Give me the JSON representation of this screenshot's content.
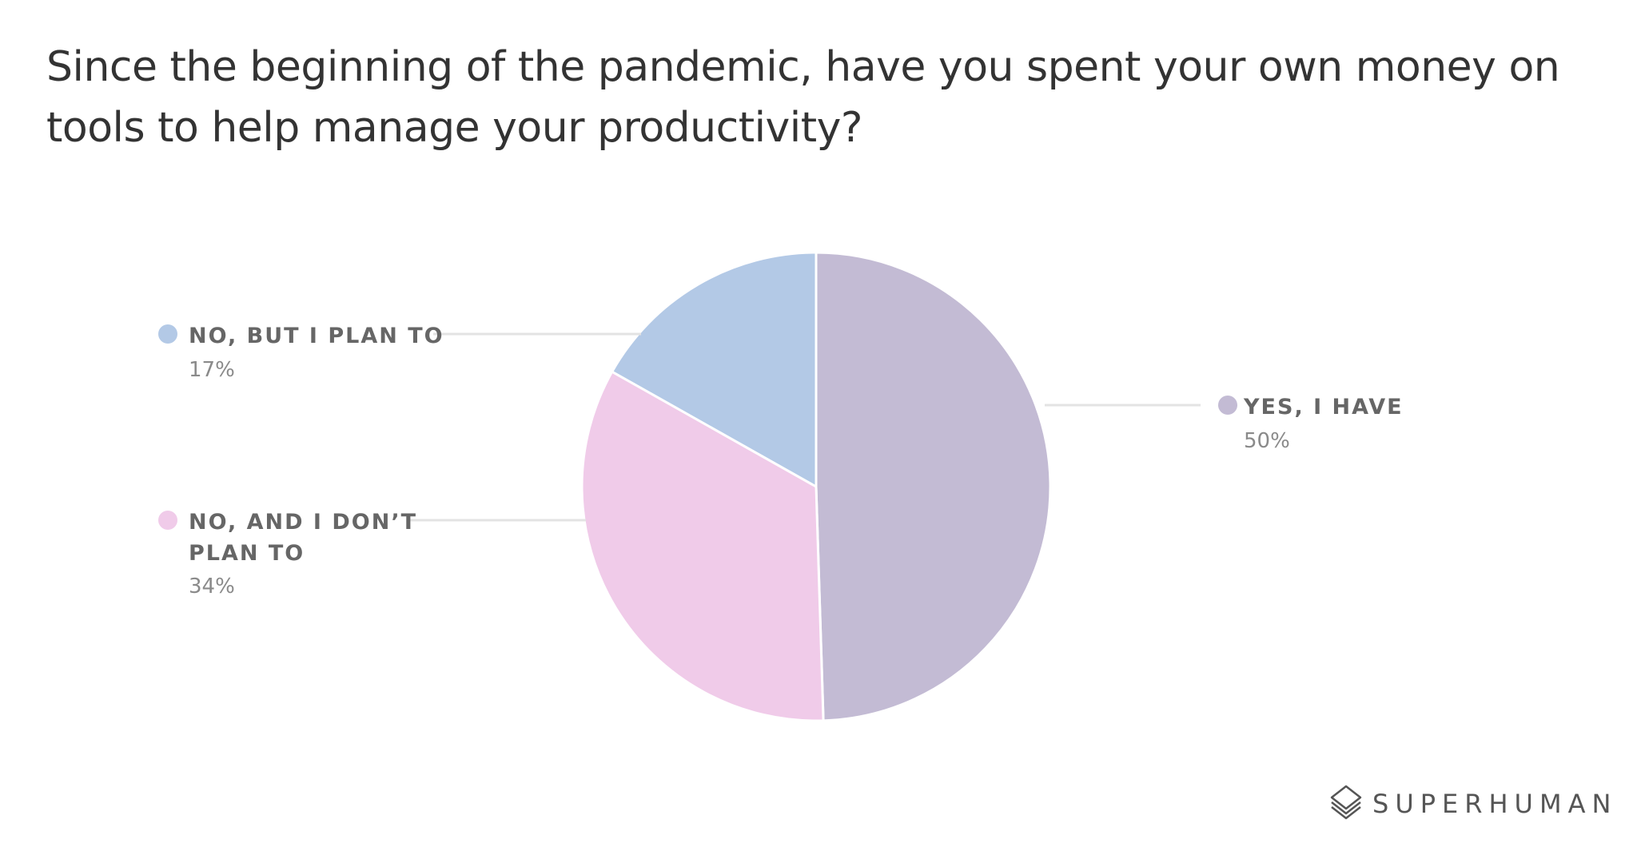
{
  "chart_data": {
    "type": "pie",
    "title": "Since the beginning of the pandemic, have you spent your own money on tools to help manage your productivity?",
    "slices": [
      {
        "label": "YES, I HAVE",
        "value": 50,
        "value_label": "50%",
        "color": "#c3bbd4"
      },
      {
        "label": "NO, AND I DON’T PLAN TO",
        "value": 34,
        "value_label": "34%",
        "color": "#f0cbe9"
      },
      {
        "label": "NO, BUT I PLAN TO",
        "value": 17,
        "value_label": "17%",
        "color": "#b3c9e6"
      }
    ],
    "start": "12 o'clock",
    "direction": "clockwise"
  },
  "brand": {
    "name": "SUPERHUMAN",
    "logo_icon": "layered-diamond-icon"
  }
}
